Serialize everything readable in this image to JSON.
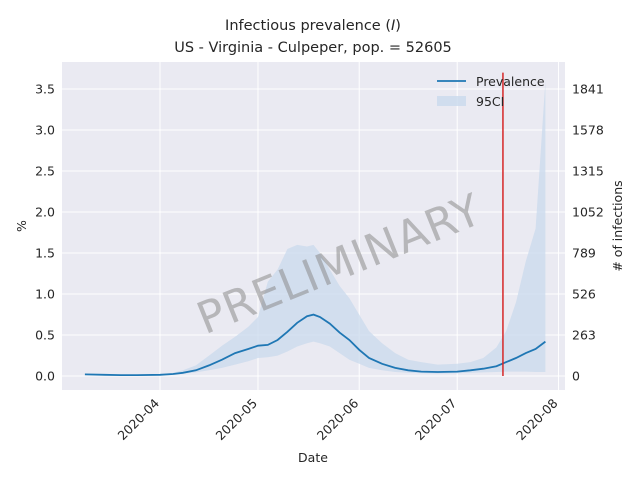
{
  "chart_data": {
    "type": "line",
    "title_line1": "Infectious prevalence (",
    "title_italic": "I",
    "title_line1_end": ")",
    "title_line2": "US - Virginia - Culpeper, pop. = 52605",
    "xlabel": "Date",
    "ylabel_left": "%",
    "ylabel_right": "# of infections",
    "ylim": [
      -0.17,
      3.83
    ],
    "xlim": [
      "2020-03-02",
      "2020-08-03"
    ],
    "x_ticks": [
      "2020-04",
      "2020-05",
      "2020-06",
      "2020-07",
      "2020-08"
    ],
    "y_ticks_left": [
      "0.0",
      "0.5",
      "1.0",
      "1.5",
      "2.0",
      "2.5",
      "3.0",
      "3.5"
    ],
    "y_ticks_left_values": [
      0,
      0.5,
      1.0,
      1.5,
      2.0,
      2.5,
      3.0,
      3.5
    ],
    "y_ticks_right": [
      "0",
      "263",
      "526",
      "789",
      "1052",
      "1315",
      "1578",
      "1841"
    ],
    "grid": true,
    "legend_position": "top-right",
    "legend": [
      "Prevalence",
      "95CI"
    ],
    "watermark": "PRELIMINARY",
    "vline_date": "2020-07-15",
    "colors": {
      "line": "#1f77b4",
      "band": "#c9d9ec",
      "vline": "#d62728",
      "background": "#eaeaf2",
      "grid": "#ffffff"
    },
    "series": [
      {
        "name": "Prevalence",
        "x": [
          "2020-03-09",
          "2020-03-15",
          "2020-03-20",
          "2020-03-25",
          "2020-04-01",
          "2020-04-05",
          "2020-04-08",
          "2020-04-12",
          "2020-04-16",
          "2020-04-20",
          "2020-04-24",
          "2020-04-28",
          "2020-05-01",
          "2020-05-04",
          "2020-05-07",
          "2020-05-10",
          "2020-05-13",
          "2020-05-16",
          "2020-05-18",
          "2020-05-20",
          "2020-05-23",
          "2020-05-26",
          "2020-05-29",
          "2020-06-01",
          "2020-06-04",
          "2020-06-08",
          "2020-06-12",
          "2020-06-16",
          "2020-06-20",
          "2020-06-25",
          "2020-07-01",
          "2020-07-05",
          "2020-07-09",
          "2020-07-13",
          "2020-07-16",
          "2020-07-19",
          "2020-07-22",
          "2020-07-25",
          "2020-07-28"
        ],
        "values": [
          0.02,
          0.015,
          0.012,
          0.012,
          0.015,
          0.025,
          0.04,
          0.07,
          0.13,
          0.2,
          0.28,
          0.33,
          0.37,
          0.38,
          0.44,
          0.54,
          0.65,
          0.73,
          0.75,
          0.72,
          0.64,
          0.53,
          0.44,
          0.32,
          0.22,
          0.15,
          0.1,
          0.07,
          0.055,
          0.05,
          0.055,
          0.07,
          0.09,
          0.12,
          0.17,
          0.22,
          0.28,
          0.33,
          0.42
        ]
      },
      {
        "name": "95CI",
        "x": [
          "2020-03-09",
          "2020-03-15",
          "2020-03-20",
          "2020-03-25",
          "2020-04-01",
          "2020-04-05",
          "2020-04-08",
          "2020-04-12",
          "2020-04-16",
          "2020-04-20",
          "2020-04-24",
          "2020-04-28",
          "2020-05-01",
          "2020-05-04",
          "2020-05-07",
          "2020-05-10",
          "2020-05-13",
          "2020-05-16",
          "2020-05-18",
          "2020-05-20",
          "2020-05-23",
          "2020-05-26",
          "2020-05-29",
          "2020-06-01",
          "2020-06-04",
          "2020-06-08",
          "2020-06-12",
          "2020-06-16",
          "2020-06-20",
          "2020-06-25",
          "2020-07-01",
          "2020-07-05",
          "2020-07-09",
          "2020-07-13",
          "2020-07-16",
          "2020-07-19",
          "2020-07-22",
          "2020-07-25",
          "2020-07-28"
        ],
        "lower": [
          0.02,
          0.015,
          0.012,
          0.012,
          0.015,
          0.02,
          0.03,
          0.045,
          0.07,
          0.1,
          0.14,
          0.18,
          0.22,
          0.23,
          0.25,
          0.3,
          0.36,
          0.4,
          0.42,
          0.4,
          0.36,
          0.28,
          0.2,
          0.15,
          0.1,
          0.07,
          0.05,
          0.04,
          0.035,
          0.03,
          0.035,
          0.04,
          0.045,
          0.05,
          0.055,
          0.055,
          0.055,
          0.05,
          0.05
        ],
        "upper": [
          0.02,
          0.016,
          0.014,
          0.014,
          0.02,
          0.04,
          0.07,
          0.13,
          0.25,
          0.37,
          0.48,
          0.6,
          0.72,
          1.15,
          1.3,
          1.55,
          1.6,
          1.58,
          1.6,
          1.5,
          1.3,
          1.1,
          0.95,
          0.75,
          0.55,
          0.4,
          0.28,
          0.2,
          0.17,
          0.14,
          0.15,
          0.17,
          0.22,
          0.35,
          0.55,
          0.9,
          1.4,
          1.8,
          3.6
        ]
      }
    ]
  }
}
